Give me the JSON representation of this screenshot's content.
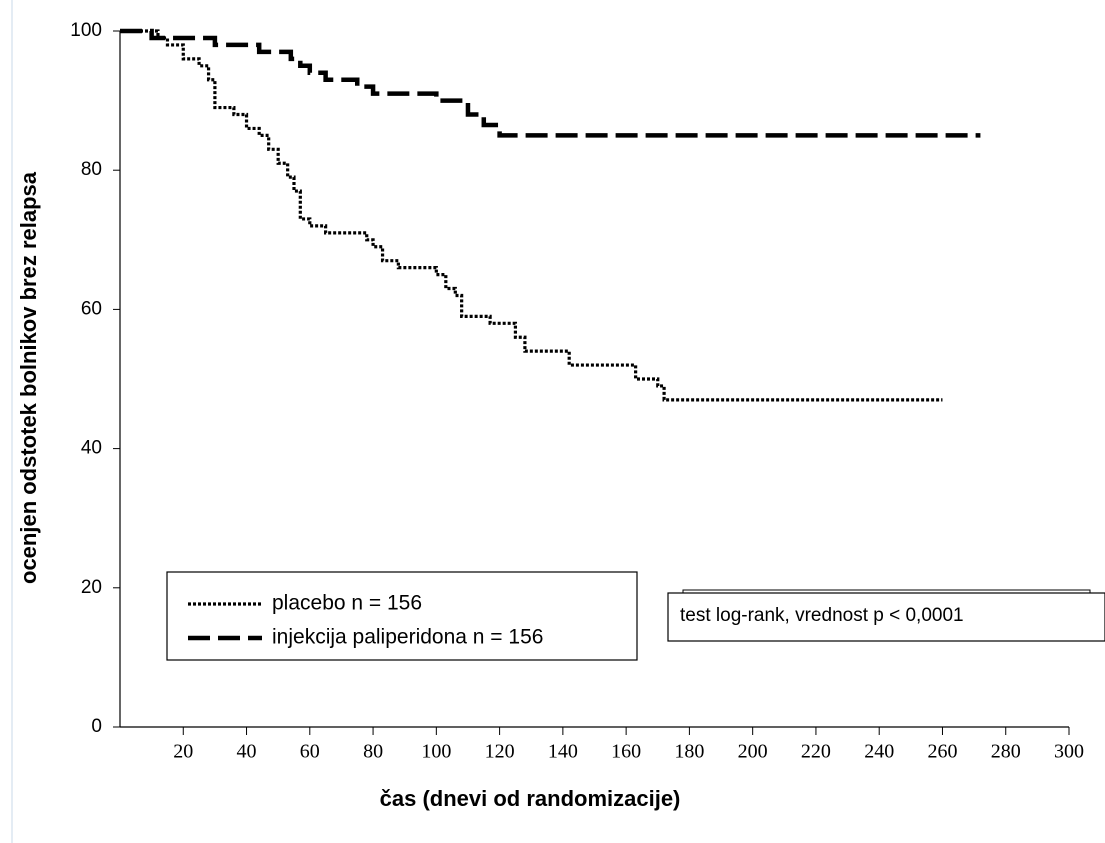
{
  "chart_data": {
    "type": "line",
    "step": "post",
    "xlabel": "čas (dnevi od randomizacije)",
    "ylabel": "ocenjen odstotek bolnikov brez relapsa",
    "xlim": [
      0,
      300
    ],
    "xticks": [
      20,
      40,
      60,
      80,
      100,
      120,
      140,
      160,
      180,
      200,
      220,
      240,
      260,
      280,
      300
    ],
    "ylim": [
      0,
      100
    ],
    "yticks": [
      0,
      20,
      40,
      60,
      80,
      100
    ],
    "annotation": "test log-rank, vrednost p < 0,0001",
    "series": [
      {
        "name": "placebo n = 156",
        "color": "#000000",
        "dash": "dotted",
        "x": [
          0,
          12,
          15,
          20,
          25,
          28,
          30,
          36,
          40,
          44,
          47,
          50,
          53,
          55,
          57,
          60,
          65,
          78,
          80,
          83,
          88,
          100,
          103,
          106,
          108,
          117,
          125,
          128,
          142,
          163,
          170,
          172,
          260
        ],
        "values": [
          100,
          99,
          98,
          96,
          95,
          93,
          89,
          88,
          86,
          85,
          83,
          81,
          79,
          77,
          73,
          72,
          71,
          70,
          69,
          67,
          66,
          65,
          63,
          62,
          59,
          58,
          56,
          54,
          52,
          50,
          49,
          47,
          47
        ]
      },
      {
        "name": "injekcija paliperidona n = 156",
        "color": "#000000",
        "dash": "dashed",
        "x": [
          0,
          10,
          30,
          44,
          54,
          57,
          60,
          65,
          75,
          80,
          100,
          110,
          115,
          120,
          272
        ],
        "values": [
          100,
          99,
          98,
          97,
          96,
          95,
          94,
          93,
          92,
          91,
          90,
          88,
          86.5,
          85,
          85
        ]
      }
    ]
  }
}
